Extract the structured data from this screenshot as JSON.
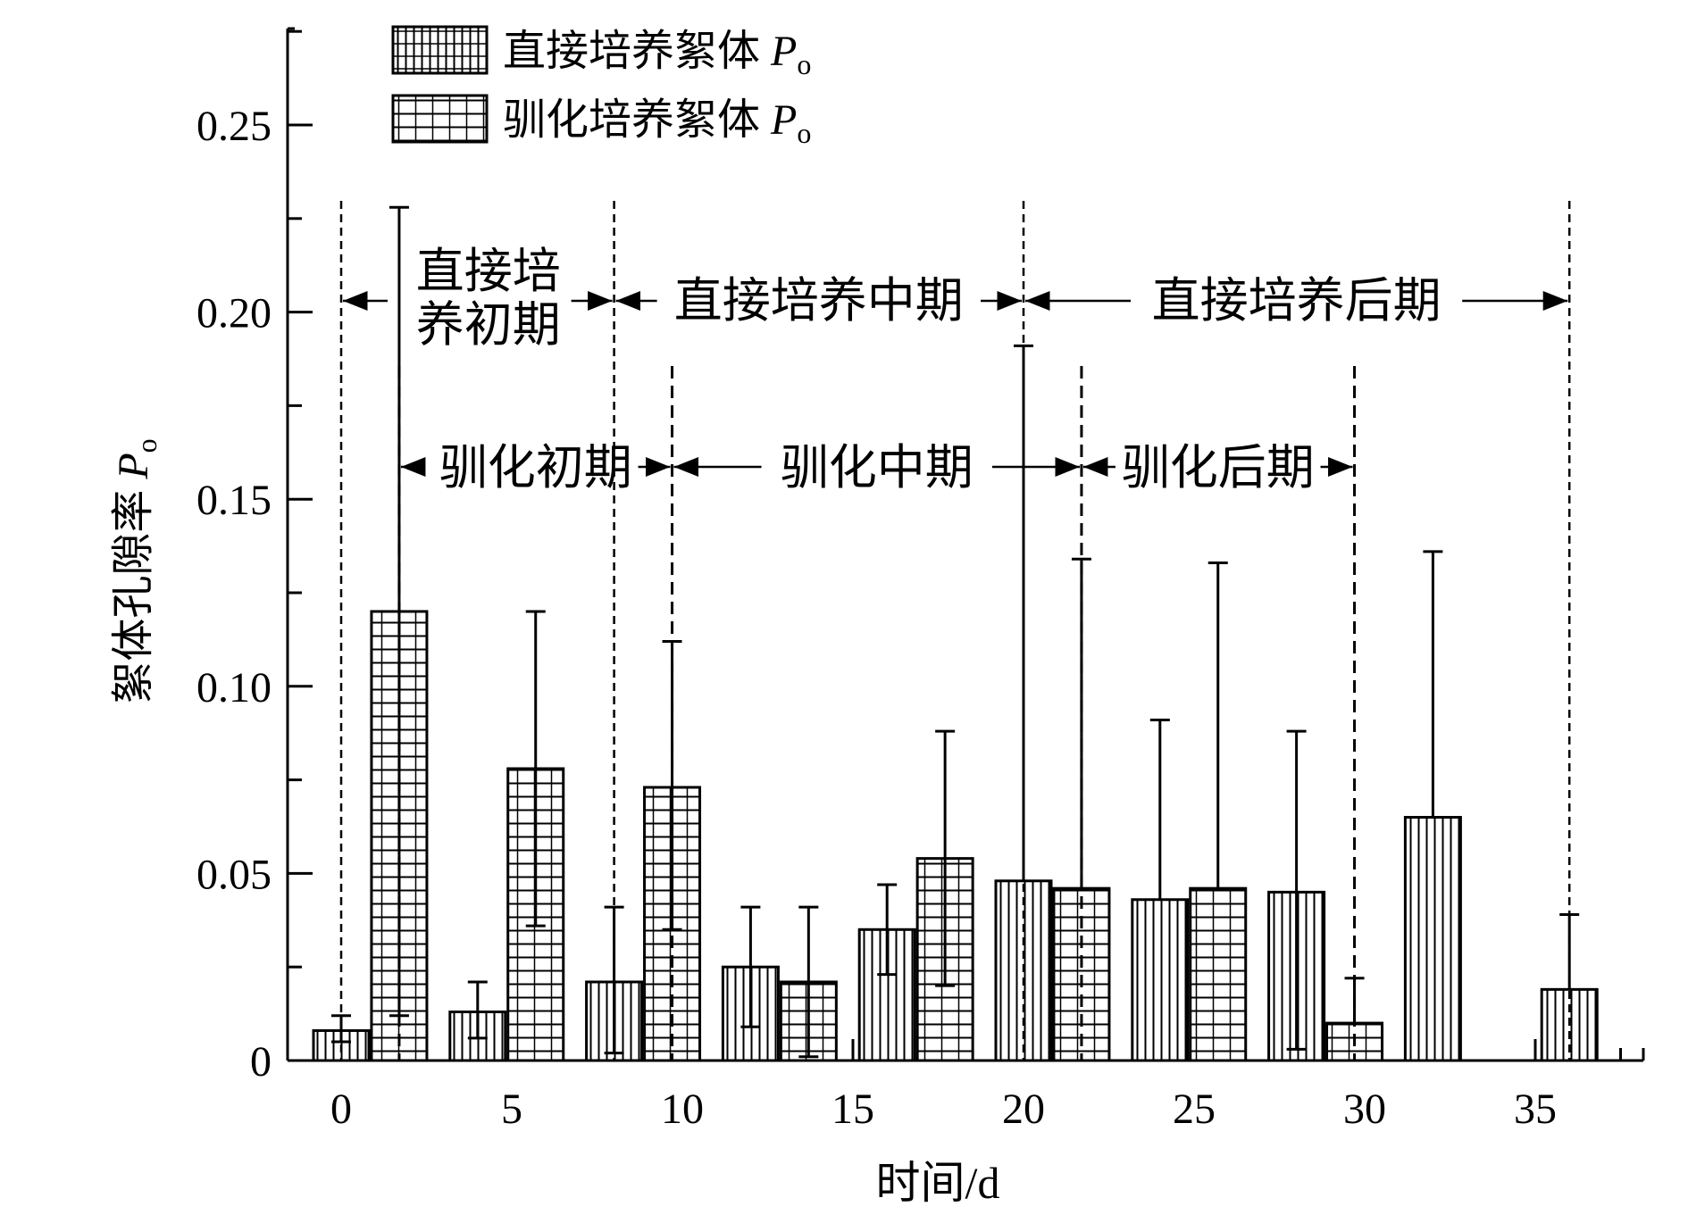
{
  "chart_data": {
    "type": "bar",
    "xlabel": "时间/d",
    "ylabel_main": "絮体孔隙率 ",
    "ylabel_symbol": "P",
    "ylabel_sub": "o",
    "xlim": [
      -1.5,
      38
    ],
    "ylim": [
      0,
      0.27
    ],
    "xticks": [
      0,
      5,
      10,
      15,
      20,
      25,
      30,
      35
    ],
    "yticks": [
      0,
      0.05,
      0.1,
      0.15,
      0.2,
      0.25
    ],
    "ytick_labels": [
      "0",
      "0.05",
      "0.10",
      "0.15",
      "0.20",
      "0.25"
    ],
    "legend_position": "top-left",
    "series": [
      {
        "name_main": "直接培养絮体 ",
        "name_symbol": "P",
        "name_sub": "o",
        "pattern": "vertical",
        "x": [
          0,
          4,
          8,
          12,
          16,
          20,
          24,
          28,
          32,
          36
        ],
        "values": [
          0.008,
          0.013,
          0.021,
          0.025,
          0.035,
          0.048,
          0.043,
          0.045,
          0.065,
          0.019
        ],
        "err_low": [
          0.005,
          0.006,
          0.002,
          0.009,
          0.023,
          null,
          null,
          0.003,
          null,
          null
        ],
        "err_high": [
          0.012,
          0.021,
          0.041,
          0.041,
          0.047,
          0.191,
          0.091,
          0.088,
          0.136,
          0.039
        ]
      },
      {
        "name_main": "驯化培养絮体 ",
        "name_symbol": "P",
        "name_sub": "o",
        "pattern": "horizontal",
        "x": [
          1.7,
          5.7,
          9.7,
          13.7,
          17.7,
          21.7,
          25.7,
          29.7
        ],
        "values": [
          0.12,
          0.078,
          0.073,
          0.021,
          0.054,
          0.046,
          0.046,
          0.01
        ],
        "err_low": [
          0.012,
          0.036,
          0.035,
          0.001,
          0.02,
          null,
          null,
          null
        ],
        "err_high": [
          0.228,
          0.12,
          0.112,
          0.041,
          0.088,
          0.134,
          0.133,
          0.022
        ]
      }
    ],
    "period_markers": {
      "direct": [
        0,
        8,
        20,
        36
      ],
      "acclimated": [
        1.7,
        9.7,
        21.7,
        29.7
      ]
    },
    "annotations": {
      "direct_early_line1": "直接培",
      "direct_early_line2": "养初期",
      "direct_mid": "直接培养中期",
      "direct_late": "直接培养后期",
      "accl_early": "驯化初期",
      "accl_mid": "驯化中期",
      "accl_late": "驯化后期"
    }
  }
}
